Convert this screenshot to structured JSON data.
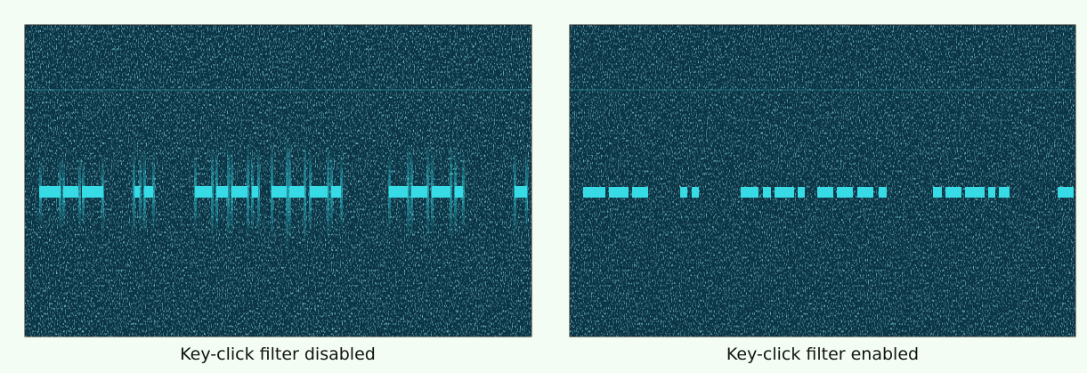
{
  "panels": [
    {
      "caption": "Key-click filter disabled"
    },
    {
      "caption": "Key-click filter enabled"
    }
  ]
}
